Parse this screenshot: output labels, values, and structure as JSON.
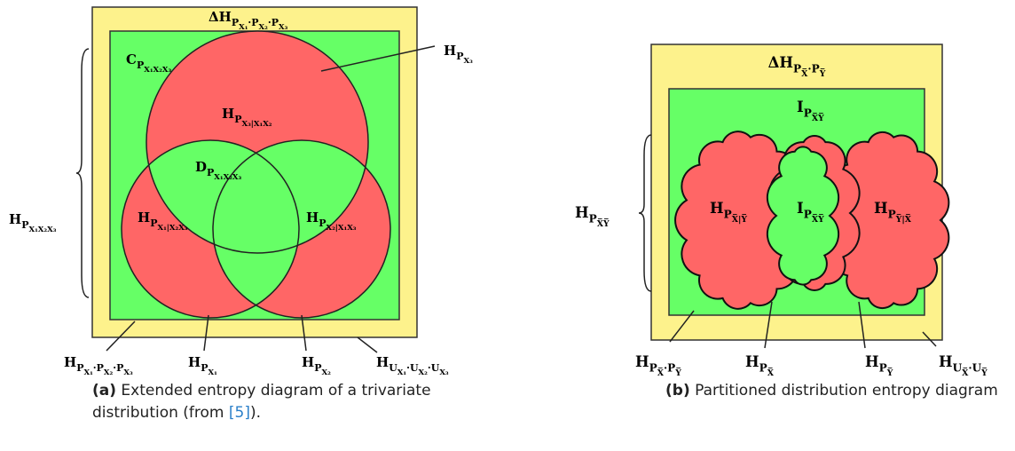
{
  "figures": [
    {
      "labels": [
        {
          "parts": [
            {
              "t": "ΔH"
            },
            {
              "s": "P"
            },
            {
              "ss": "X₁"
            },
            {
              "s": "·P"
            },
            {
              "ss": "X₂"
            },
            {
              "s": "·P"
            },
            {
              "ss": "X₃"
            }
          ]
        },
        {
          "parts": [
            {
              "t": "C"
            },
            {
              "s": "P"
            },
            {
              "ss": "X₁X₂X₃"
            }
          ]
        },
        {
          "parts": [
            {
              "t": "H"
            },
            {
              "s": "P"
            },
            {
              "ss": "X₃"
            }
          ]
        },
        {
          "parts": [
            {
              "t": "H"
            },
            {
              "s": "P"
            },
            {
              "ss": "X₃|X₁X₂"
            }
          ]
        },
        {
          "parts": [
            {
              "t": "D"
            },
            {
              "s": "P"
            },
            {
              "ss": "X₁X₂X₃"
            }
          ]
        },
        {
          "parts": [
            {
              "t": "H"
            },
            {
              "s": "P"
            },
            {
              "ss": "X₁|X₂X₃"
            }
          ]
        },
        {
          "parts": [
            {
              "t": "H"
            },
            {
              "s": "P"
            },
            {
              "ss": "X₂|X₁X₃"
            }
          ]
        },
        {
          "parts": [
            {
              "t": "H"
            },
            {
              "s": "P"
            },
            {
              "ss": "X₁X₂X₃"
            }
          ]
        },
        {
          "parts": [
            {
              "t": "H"
            },
            {
              "s": "P"
            },
            {
              "ss": "X₁"
            },
            {
              "s": "·P"
            },
            {
              "ss": "X₂"
            },
            {
              "s": "·P"
            },
            {
              "ss": "X₃"
            }
          ]
        },
        {
          "parts": [
            {
              "t": "H"
            },
            {
              "s": "P"
            },
            {
              "ss": "X₁"
            }
          ]
        },
        {
          "parts": [
            {
              "t": "H"
            },
            {
              "s": "P"
            },
            {
              "ss": "X₂"
            }
          ]
        },
        {
          "parts": [
            {
              "t": "H"
            },
            {
              "s": "U"
            },
            {
              "ss": "X₁"
            },
            {
              "s": "·U"
            },
            {
              "ss": "X₂"
            },
            {
              "s": "·U"
            },
            {
              "ss": "X₃"
            }
          ]
        }
      ],
      "caption": {
        "tag": "(a)",
        "text": "Extended entropy diagram of a trivariate distribution (from ",
        "ref": "[5]",
        "end": ")."
      }
    },
    {
      "labels": [
        {
          "parts": [
            {
              "t": "ΔH"
            },
            {
              "s": "P"
            },
            {
              "ss": "X̅"
            },
            {
              "s": "·P"
            },
            {
              "ss": "Y̅"
            }
          ]
        },
        {
          "parts": [
            {
              "t": "I"
            },
            {
              "s": "P"
            },
            {
              "ss": "X̅Y̅"
            }
          ]
        },
        {
          "parts": [
            {
              "t": "H"
            },
            {
              "s": "P"
            },
            {
              "ss": "X̅|Y̅"
            }
          ]
        },
        {
          "parts": [
            {
              "t": "I"
            },
            {
              "s": "P"
            },
            {
              "ss": "X̅Y̅"
            }
          ]
        },
        {
          "parts": [
            {
              "t": "H"
            },
            {
              "s": "P"
            },
            {
              "ss": "Y̅|X̅"
            }
          ]
        },
        {
          "parts": [
            {
              "t": "H"
            },
            {
              "s": "P"
            },
            {
              "ss": "X̅Y̅"
            }
          ]
        },
        {
          "parts": [
            {
              "t": "H"
            },
            {
              "s": "P"
            },
            {
              "ss": "X̅"
            },
            {
              "s": "·P"
            },
            {
              "ss": "Y̅"
            }
          ]
        },
        {
          "parts": [
            {
              "t": "H"
            },
            {
              "s": "P"
            },
            {
              "ss": "X̅"
            }
          ]
        },
        {
          "parts": [
            {
              "t": "H"
            },
            {
              "s": "P"
            },
            {
              "ss": "Y̅"
            }
          ]
        },
        {
          "parts": [
            {
              "t": "H"
            },
            {
              "s": "U"
            },
            {
              "ss": "X̅"
            },
            {
              "s": "·U"
            },
            {
              "ss": "Y̅"
            }
          ]
        }
      ],
      "caption": {
        "tag": "(b)",
        "text": "Partitioned distribution entropy diagram",
        "ref": "",
        "end": ""
      }
    }
  ]
}
